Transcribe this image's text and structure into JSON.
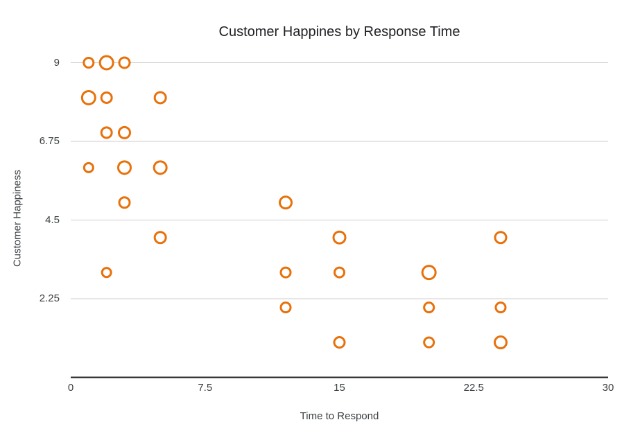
{
  "chart_data": {
    "type": "scatter",
    "title": "Customer Happines by Response Time",
    "xlabel": "Time to Respond",
    "ylabel": "Customer Happiness",
    "xlim": [
      0,
      30
    ],
    "ylim": [
      0,
      9
    ],
    "x_ticks": [
      0,
      7.5,
      15,
      22.5,
      30
    ],
    "y_ticks": [
      9,
      6.75,
      4.5,
      2.25
    ],
    "grid": "horizontal-only",
    "legend_position": "none",
    "marker": {
      "shape": "hollow-circle",
      "stroke_color": "#e8710a",
      "fill_color": "#ffffff",
      "stroke_width": 3
    },
    "colors": {
      "gridline": "#cccccc",
      "axis_line": "#212121",
      "tick_text": "#3c4043",
      "title_text": "#202124"
    },
    "points": [
      {
        "x": 1,
        "y": 9,
        "r": 7
      },
      {
        "x": 2,
        "y": 9,
        "r": 9.5
      },
      {
        "x": 3,
        "y": 9,
        "r": 7.5
      },
      {
        "x": 1,
        "y": 8,
        "r": 9.5
      },
      {
        "x": 2,
        "y": 8,
        "r": 7.5
      },
      {
        "x": 5,
        "y": 8,
        "r": 8
      },
      {
        "x": 2,
        "y": 7,
        "r": 7.5
      },
      {
        "x": 3,
        "y": 7,
        "r": 8
      },
      {
        "x": 1,
        "y": 6,
        "r": 6.5
      },
      {
        "x": 3,
        "y": 6,
        "r": 9
      },
      {
        "x": 5,
        "y": 6,
        "r": 9
      },
      {
        "x": 3,
        "y": 5,
        "r": 7.5
      },
      {
        "x": 12,
        "y": 5,
        "r": 8.5
      },
      {
        "x": 5,
        "y": 4,
        "r": 8
      },
      {
        "x": 15,
        "y": 4,
        "r": 8.5
      },
      {
        "x": 24,
        "y": 4,
        "r": 8
      },
      {
        "x": 2,
        "y": 3,
        "r": 6.5
      },
      {
        "x": 12,
        "y": 3,
        "r": 7
      },
      {
        "x": 15,
        "y": 3,
        "r": 7
      },
      {
        "x": 20,
        "y": 3,
        "r": 9.5
      },
      {
        "x": 12,
        "y": 2,
        "r": 7
      },
      {
        "x": 20,
        "y": 2,
        "r": 7
      },
      {
        "x": 24,
        "y": 2,
        "r": 7
      },
      {
        "x": 15,
        "y": 1,
        "r": 7.5
      },
      {
        "x": 20,
        "y": 1,
        "r": 7
      },
      {
        "x": 24,
        "y": 1,
        "r": 8.5
      }
    ]
  }
}
